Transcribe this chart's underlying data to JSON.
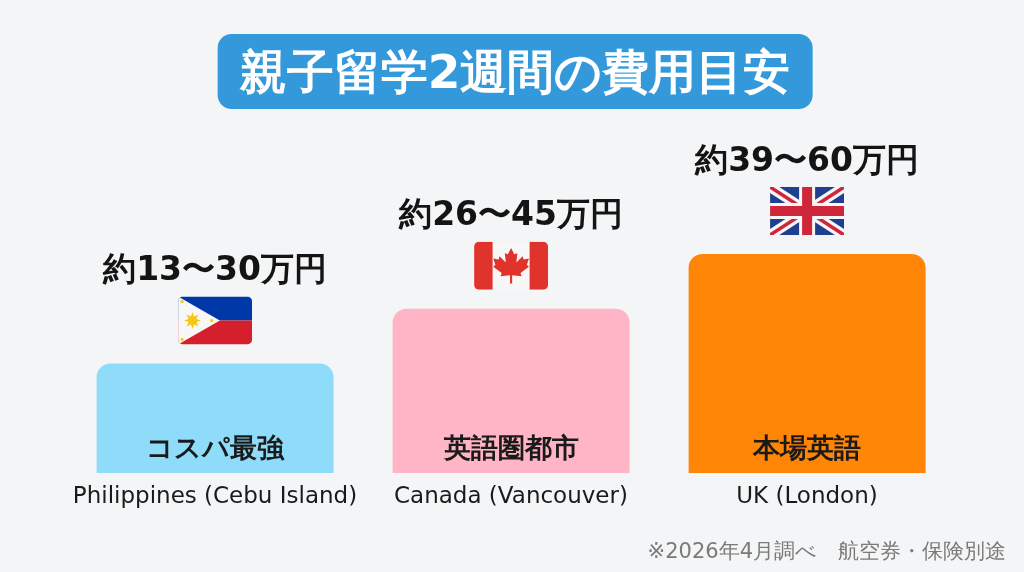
{
  "chart_data": {
    "type": "bar",
    "title": "親子留学2週間の費用目安",
    "categories": [
      "Philippines (Cebu Island)",
      "Canada (Vancouver)",
      "UK (London)"
    ],
    "values": [
      30,
      45,
      60
    ],
    "colors": [
      "#8edcfa",
      "#ffb5c5",
      "#ff8506"
    ],
    "value_labels": [
      "約13〜30万円",
      "約26〜45万円",
      "約39〜60万円"
    ],
    "annotations": [
      "コスパ最強",
      "英語圏都市",
      "本場英語",
      "※2026年4月調べ　航空券・保険別途"
    ],
    "tick_labels": "x"
  }
}
